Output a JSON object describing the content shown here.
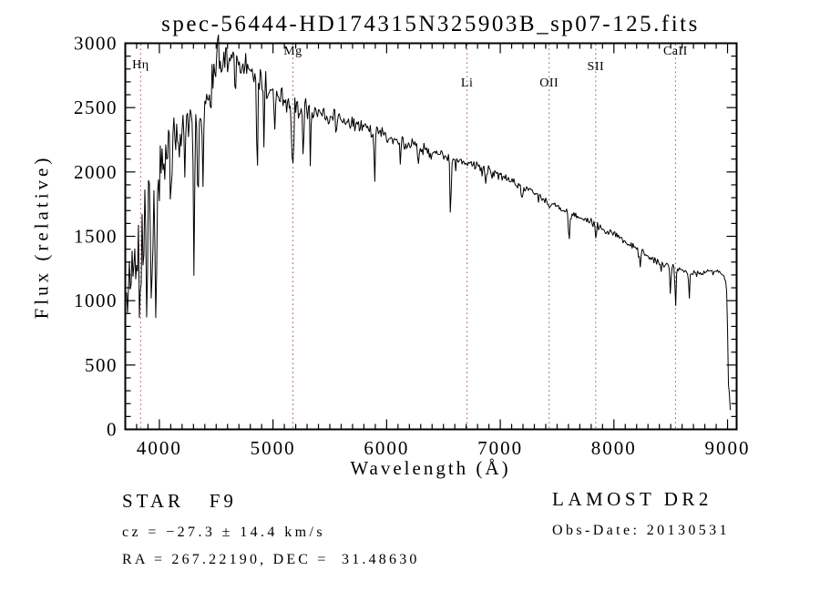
{
  "footer": {
    "left": {
      "class_line": "STAR   F9",
      "cz_line": "cz = −27.3 ± 14.4 km/s",
      "radec_line": "RA = 267.22190, DEC =  31.48630"
    },
    "right": {
      "survey_line": "LAMOST DR2",
      "obsdate_line": "Obs-Date: 20130531"
    }
  },
  "chart_data": {
    "type": "line",
    "title": "spec-56444-HD174315N325903B_sp07-125.fits",
    "xlabel": "Wavelength (Å)",
    "ylabel": "Flux (relative)",
    "xlim": [
      3700,
      9080
    ],
    "ylim": [
      0,
      3000
    ],
    "x_major_ticks": [
      4000,
      5000,
      6000,
      7000,
      8000,
      9000
    ],
    "x_minor_step": 100,
    "y_major_ticks": [
      0,
      500,
      1000,
      1500,
      2000,
      2500,
      3000
    ],
    "y_minor_step": 100,
    "grid": false,
    "legend": null,
    "line_color": "#000000",
    "frame_color": "#000000",
    "marker_line_color": "#9b4f4f",
    "spectral_line_markers": [
      {
        "label": "Hη",
        "wavelength": 3835,
        "label_top": 64
      },
      {
        "label": "Mg",
        "wavelength": 5175,
        "label_top": 49
      },
      {
        "label": "Li",
        "wavelength": 6708,
        "label_top": 84
      },
      {
        "label": "OII",
        "wavelength": 7430,
        "label_top": 84
      },
      {
        "label": "SII",
        "wavelength": 7840,
        "label_top": 66
      },
      {
        "label": "CaII",
        "wavelength": 8542,
        "label_top": 49
      }
    ],
    "continuum_points_format": [
      "wavelength_angstrom",
      "flux"
    ],
    "continuum_points": [
      [
        3712,
        1450
      ],
      [
        3740,
        1380
      ],
      [
        3780,
        1430
      ],
      [
        3830,
        1400
      ],
      [
        3880,
        1560
      ],
      [
        3925,
        1680
      ],
      [
        3955,
        1700
      ],
      [
        3990,
        1820
      ],
      [
        4020,
        2060
      ],
      [
        4060,
        2230
      ],
      [
        4120,
        2280
      ],
      [
        4200,
        2330
      ],
      [
        4280,
        2350
      ],
      [
        4360,
        2430
      ],
      [
        4430,
        2610
      ],
      [
        4470,
        2760
      ],
      [
        4500,
        2850
      ],
      [
        4512,
        3060
      ],
      [
        4525,
        2860
      ],
      [
        4560,
        2880
      ],
      [
        4620,
        2890
      ],
      [
        4680,
        2870
      ],
      [
        4740,
        2840
      ],
      [
        4800,
        2790
      ],
      [
        4860,
        2740
      ],
      [
        4920,
        2690
      ],
      [
        5000,
        2620
      ],
      [
        5080,
        2570
      ],
      [
        5160,
        2520
      ],
      [
        5240,
        2500
      ],
      [
        5320,
        2480
      ],
      [
        5400,
        2460
      ],
      [
        5500,
        2440
      ],
      [
        5600,
        2410
      ],
      [
        5700,
        2380
      ],
      [
        5800,
        2350
      ],
      [
        5900,
        2320
      ],
      [
        6000,
        2280
      ],
      [
        6100,
        2250
      ],
      [
        6200,
        2220
      ],
      [
        6300,
        2190
      ],
      [
        6400,
        2160
      ],
      [
        6500,
        2130
      ],
      [
        6600,
        2100
      ],
      [
        6700,
        2075
      ],
      [
        6800,
        2045
      ],
      [
        6900,
        2015
      ],
      [
        7000,
        1970
      ],
      [
        7100,
        1930
      ],
      [
        7200,
        1880
      ],
      [
        7300,
        1830
      ],
      [
        7400,
        1785
      ],
      [
        7500,
        1735
      ],
      [
        7600,
        1690
      ],
      [
        7700,
        1650
      ],
      [
        7800,
        1610
      ],
      [
        7900,
        1560
      ],
      [
        8000,
        1510
      ],
      [
        8100,
        1460
      ],
      [
        8200,
        1400
      ],
      [
        8300,
        1350
      ],
      [
        8400,
        1300
      ],
      [
        8500,
        1270
      ],
      [
        8600,
        1240
      ],
      [
        8700,
        1215
      ],
      [
        8800,
        1215
      ],
      [
        8880,
        1235
      ],
      [
        8940,
        1215
      ],
      [
        8975,
        1185
      ],
      [
        8995,
        1080
      ],
      [
        9002,
        700
      ],
      [
        9008,
        360
      ],
      [
        9014,
        320
      ],
      [
        9020,
        200
      ],
      [
        9026,
        80
      ]
    ],
    "absorption_features_format": [
      "wavelength_angstrom",
      "depth_flux",
      "sigma_angstrom"
    ],
    "absorption_features": [
      [
        3722,
        550,
        5
      ],
      [
        3750,
        430,
        5
      ],
      [
        3770,
        430,
        4
      ],
      [
        3798,
        480,
        5
      ],
      [
        3835,
        560,
        5
      ],
      [
        3860,
        380,
        4
      ],
      [
        3889,
        600,
        5
      ],
      [
        3933,
        800,
        6
      ],
      [
        3969,
        920,
        6
      ],
      [
        4045,
        300,
        4
      ],
      [
        4101,
        620,
        6
      ],
      [
        4173,
        330,
        4
      ],
      [
        4226,
        380,
        4
      ],
      [
        4305,
        820,
        6
      ],
      [
        4340,
        700,
        5
      ],
      [
        4383,
        630,
        5
      ],
      [
        4455,
        300,
        4
      ],
      [
        4668,
        320,
        4
      ],
      [
        4861,
        760,
        5
      ],
      [
        4920,
        420,
        4
      ],
      [
        5015,
        430,
        4
      ],
      [
        5175,
        540,
        7
      ],
      [
        5265,
        420,
        5
      ],
      [
        5330,
        330,
        4
      ],
      [
        5893,
        330,
        5
      ],
      [
        6122,
        180,
        4
      ],
      [
        6280,
        160,
        5
      ],
      [
        6563,
        520,
        5
      ],
      [
        6708,
        70,
        4
      ],
      [
        6870,
        110,
        6
      ],
      [
        7190,
        90,
        6
      ],
      [
        7430,
        70,
        5
      ],
      [
        7605,
        150,
        9
      ],
      [
        7840,
        70,
        5
      ],
      [
        8230,
        100,
        5
      ],
      [
        8498,
        230,
        4
      ],
      [
        8542,
        270,
        5
      ],
      [
        8662,
        240,
        4
      ]
    ],
    "noise_profile_format": [
      "wavelength_angstrom",
      "noise_amplitude_flux",
      "downward_spike_flux"
    ],
    "noise_profile": [
      [
        3712,
        340,
        520
      ],
      [
        3900,
        380,
        560
      ],
      [
        3995,
        290,
        430
      ],
      [
        4060,
        230,
        330
      ],
      [
        4250,
        200,
        290
      ],
      [
        4450,
        150,
        230
      ],
      [
        4700,
        130,
        200
      ],
      [
        4950,
        120,
        180
      ],
      [
        5200,
        95,
        150
      ],
      [
        5500,
        75,
        120
      ],
      [
        5900,
        58,
        90
      ],
      [
        6300,
        48,
        70
      ],
      [
        6700,
        42,
        55
      ],
      [
        7200,
        38,
        48
      ],
      [
        7800,
        36,
        46
      ],
      [
        8400,
        34,
        52
      ],
      [
        8900,
        30,
        42
      ],
      [
        9026,
        24,
        30
      ]
    ],
    "noise_spike_probability": 0.1,
    "clip_max_flux": 3085,
    "clip_min_flux": 150,
    "data_start_wavelength": 3712,
    "data_end_wavelength": 9026,
    "sample_step_angstrom": 8,
    "seed": 56444
  }
}
